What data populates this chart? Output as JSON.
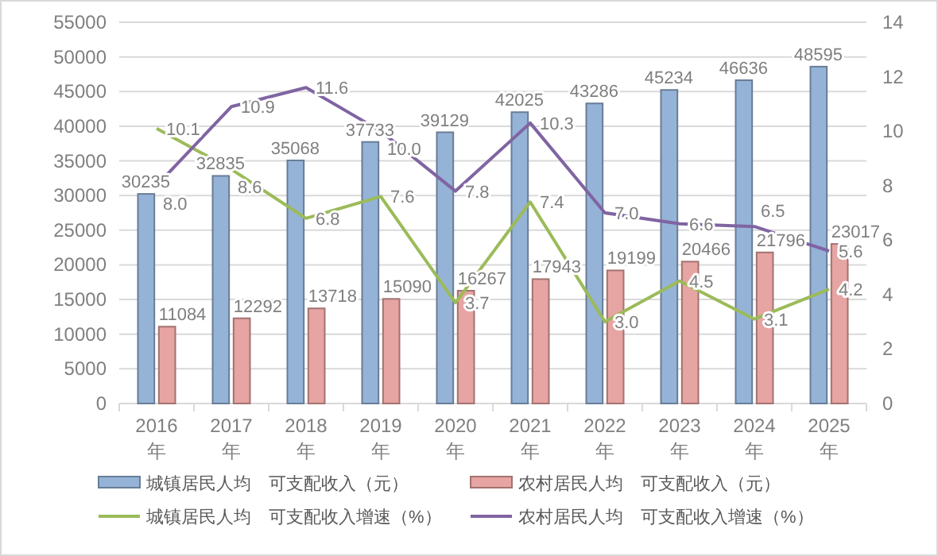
{
  "chart_data": {
    "type": "bar",
    "categories": [
      "2016\n年",
      "2017\n年",
      "2018\n年",
      "2019\n年",
      "2020\n年",
      "2021\n年",
      "2022\n年",
      "2023\n年",
      "2024\n年",
      "2025\n年"
    ],
    "series": [
      {
        "name": "城镇居民人均　可支配收入（元）",
        "color": "#95b3d7",
        "values": [
          30235,
          32835,
          35068,
          37733,
          39129,
          42025,
          43286,
          45234,
          46636,
          48595
        ]
      },
      {
        "name": "农村居民人均　可支配收入（元）",
        "color": "#e6a4a2",
        "values": [
          11084,
          12292,
          13718,
          15090,
          16267,
          17943,
          19199,
          20466,
          21796,
          23017
        ]
      },
      {
        "name": "城镇居民人均　可支配收入增速（%）",
        "type": "line",
        "axis": "y2",
        "color": "#9bbb59",
        "values": [
          10.1,
          8.6,
          6.8,
          7.6,
          3.7,
          7.4,
          3.0,
          4.5,
          3.1,
          4.2
        ],
        "value_labels": [
          "10.1",
          "8.6",
          "6.8",
          "7.6",
          "3.7",
          "7.4",
          "3.0",
          "4.5",
          "3.1",
          "4.2"
        ]
      },
      {
        "name": "农村居民人均　可支配收入增速（%）",
        "type": "line",
        "axis": "y2",
        "color": "#8064a2",
        "values": [
          8.0,
          10.9,
          11.6,
          10.0,
          7.8,
          10.3,
          7.0,
          6.6,
          6.5,
          5.6
        ],
        "value_labels": [
          "8.0",
          "10.9",
          "11.6",
          "10.0",
          "7.8",
          "10.3",
          "7.0",
          "6.6",
          "6.5",
          "5.6"
        ]
      }
    ],
    "ylim": [
      0,
      55000
    ],
    "yticks": [
      0,
      5000,
      10000,
      15000,
      20000,
      25000,
      30000,
      35000,
      40000,
      45000,
      50000,
      55000
    ],
    "y2lim": [
      0,
      14
    ],
    "y2ticks": [
      0,
      2,
      4,
      6,
      8,
      10,
      12,
      14
    ],
    "grid": "y",
    "data_labels": true,
    "legend": "bottom",
    "marker": "none"
  }
}
